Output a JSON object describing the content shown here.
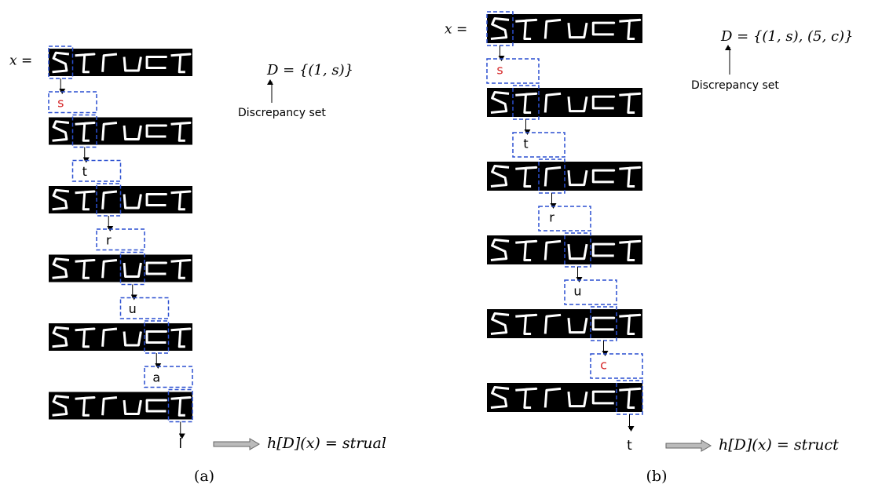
{
  "panels": [
    {
      "x_label": "x =",
      "discrepancy": "D = {(1, s)}",
      "discrepancy_caption": "Discrepancy set",
      "steps": [
        {
          "label": "s",
          "color": "#d62728"
        },
        {
          "label": "t",
          "color": "#000000"
        },
        {
          "label": "r",
          "color": "#000000"
        },
        {
          "label": "u",
          "color": "#000000"
        },
        {
          "label": "a",
          "color": "#000000"
        },
        {
          "label": "l",
          "color": "#000000"
        }
      ],
      "result": "h[D](x) = strual",
      "caption": "(a)"
    },
    {
      "x_label": "x =",
      "discrepancy": "D = {(1, s), (5, c)}",
      "discrepancy_caption": "Discrepancy set",
      "steps": [
        {
          "label": "s",
          "color": "#d62728"
        },
        {
          "label": "t",
          "color": "#000000"
        },
        {
          "label": "r",
          "color": "#000000"
        },
        {
          "label": "u",
          "color": "#000000"
        },
        {
          "label": "c",
          "color": "#d62728"
        },
        {
          "label": "t",
          "color": "#000000"
        }
      ],
      "result": "h[D](x) = struct",
      "caption": "(b)"
    }
  ]
}
